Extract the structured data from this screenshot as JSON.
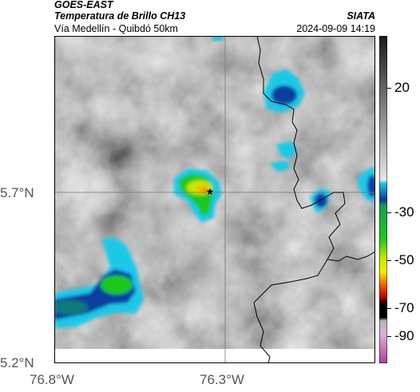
{
  "header": {
    "satellite": "GOES-EAST",
    "product": "Temperatura de Brillo CH13",
    "region": "Vía Medellín - Quibdó 50km",
    "agency": "SIATA",
    "datetime": "2024-09-09 14:19"
  },
  "axes": {
    "lat_labels": [
      "5.7°N",
      "5.2°N"
    ],
    "lon_labels": [
      "76.8°W",
      "76.3°W"
    ]
  },
  "colorbar": {
    "tick_labels": [
      "20",
      "-30",
      "-50",
      "-70",
      "-90"
    ],
    "colors": {
      "warm_gray_light": "#e0e0e0",
      "warm_gray_dark": "#1a1a1a",
      "cyan": "#1ec8e8",
      "blue": "#0a3ca0",
      "green": "#1ec81e",
      "yellow": "#f0f000",
      "orange": "#f06400",
      "red": "#b40000",
      "black": "#000000",
      "magenta": "#c83cb4"
    }
  },
  "map_marker": {
    "icon": "star-icon"
  },
  "colors": {
    "border_line": "#000000",
    "grid_line": "#777777",
    "map_gray": "#8c8c8c"
  }
}
